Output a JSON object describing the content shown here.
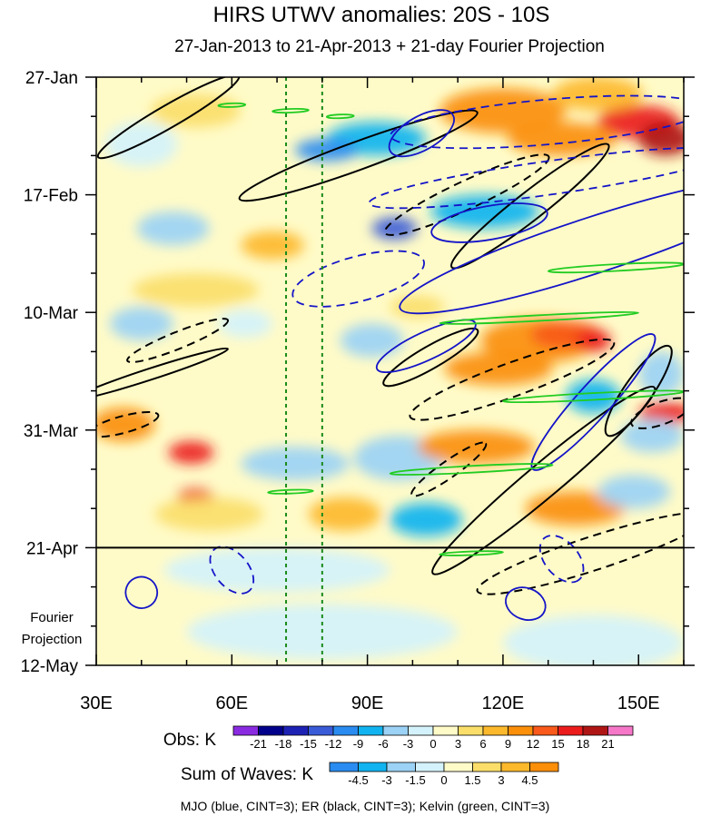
{
  "chart_data": {
    "type": "heatmap",
    "title": "HIRS UTWV anomalies: 20S - 10S",
    "subtitle": "27-Jan-2013 to 21-Apr-2013 + 21-day Fourier Projection",
    "x_axis": {
      "units": "longitude_deg_E",
      "range": [
        30,
        160
      ],
      "tick_values": [
        30,
        60,
        90,
        120,
        150
      ],
      "tick_labels": [
        "30E",
        "60E",
        "90E",
        "120E",
        "150E"
      ]
    },
    "y_axis": {
      "units": "day_index_from_27-Jan-2013",
      "range": [
        0,
        105
      ],
      "tick_values": [
        0,
        21,
        42,
        63,
        84,
        105
      ],
      "tick_labels": [
        "27-Jan",
        "17-Feb",
        "10-Mar",
        "31-Mar",
        "21-Apr",
        "12-May"
      ]
    },
    "projection_boundary_day": 84,
    "projection_label": [
      "Fourier",
      "Projection"
    ],
    "reference_lines_lon": [
      72,
      80
    ],
    "obs_colorbar": {
      "label": "Obs: K",
      "levels": [
        -21,
        -18,
        -15,
        -12,
        -9,
        -6,
        -3,
        0,
        3,
        6,
        9,
        12,
        15,
        18,
        21
      ],
      "colors": [
        "#8a2be2",
        "#00008b",
        "#1e22b4",
        "#3a5bd8",
        "#2a8cf0",
        "#11b4f0",
        "#9bd2f5",
        "#d4f2fb",
        "#fffbc8",
        "#fbde6a",
        "#fdb92c",
        "#fb8f0a",
        "#f9591a",
        "#ec1c1c",
        "#b01515",
        "#f677c8"
      ]
    },
    "waves_colorbar": {
      "label": "Sum of Waves: K",
      "levels": [
        -4.5,
        -3,
        -1.5,
        0,
        1.5,
        3,
        4.5
      ],
      "colors": [
        "#2a8cf0",
        "#11b4f0",
        "#9bd2f5",
        "#d4f2fb",
        "#fffbc8",
        "#fbde6a",
        "#fdb92c",
        "#fb8f0a"
      ]
    },
    "legend_note": "MJO (blue, CINT=3); ER (black, CINT=3); Kelvin (green, CINT=3)",
    "series_colors": {
      "MJO": "#1414c8",
      "ER": "#000000",
      "Kelvin": "#22cc22",
      "refline": "#1a8a1a"
    },
    "blobs": [
      {
        "lon": 120,
        "day": 6,
        "rx": 14,
        "ry": 4,
        "v": 9
      },
      {
        "lon": 150,
        "day": 8,
        "rx": 9,
        "ry": 3,
        "v": 15
      },
      {
        "lon": 156,
        "day": 11,
        "rx": 6,
        "ry": 3,
        "v": 18
      },
      {
        "lon": 141,
        "day": 3,
        "rx": 10,
        "ry": 3,
        "v": 6
      },
      {
        "lon": 133,
        "day": 11,
        "rx": 12,
        "ry": 3,
        "v": 9
      },
      {
        "lon": 92,
        "day": 11,
        "rx": 11,
        "ry": 3,
        "v": -9
      },
      {
        "lon": 81,
        "day": 13,
        "rx": 7,
        "ry": 2,
        "v": -12
      },
      {
        "lon": 116,
        "day": 24,
        "rx": 12,
        "ry": 3,
        "v": -9
      },
      {
        "lon": 96,
        "day": 27,
        "rx": 5,
        "ry": 2,
        "v": -15
      },
      {
        "lon": 69,
        "day": 30,
        "rx": 7,
        "ry": 2.5,
        "v": 6
      },
      {
        "lon": 47,
        "day": 27,
        "rx": 8,
        "ry": 3,
        "v": -6
      },
      {
        "lon": 40,
        "day": 12,
        "rx": 8,
        "ry": 4,
        "v": -3
      },
      {
        "lon": 52,
        "day": 6,
        "rx": 10,
        "ry": 3,
        "v": 3
      },
      {
        "lon": 52,
        "day": 38,
        "rx": 14,
        "ry": 3,
        "v": 3
      },
      {
        "lon": 40,
        "day": 44,
        "rx": 7,
        "ry": 3,
        "v": -6
      },
      {
        "lon": 63,
        "day": 44,
        "rx": 6,
        "ry": 2.5,
        "v": -3
      },
      {
        "lon": 91,
        "day": 47,
        "rx": 7,
        "ry": 3,
        "v": -6
      },
      {
        "lon": 101,
        "day": 41,
        "rx": 6,
        "ry": 2,
        "v": 3
      },
      {
        "lon": 128,
        "day": 47,
        "rx": 13,
        "ry": 4,
        "v": 9
      },
      {
        "lon": 134,
        "day": 46,
        "rx": 8,
        "ry": 2.5,
        "v": 12
      },
      {
        "lon": 140,
        "day": 47,
        "rx": 4,
        "ry": 2,
        "v": 15
      },
      {
        "lon": 119,
        "day": 52,
        "rx": 12,
        "ry": 3,
        "v": 9
      },
      {
        "lon": 140,
        "day": 57,
        "rx": 6,
        "ry": 3,
        "v": -9
      },
      {
        "lon": 156,
        "day": 60,
        "rx": 6,
        "ry": 2,
        "v": 15
      },
      {
        "lon": 155,
        "day": 53,
        "rx": 5,
        "ry": 4,
        "v": -6
      },
      {
        "lon": 36,
        "day": 62,
        "rx": 7,
        "ry": 3,
        "v": 9
      },
      {
        "lon": 51,
        "day": 67,
        "rx": 5,
        "ry": 2,
        "v": 15
      },
      {
        "lon": 74,
        "day": 69,
        "rx": 12,
        "ry": 3,
        "v": -6
      },
      {
        "lon": 97,
        "day": 68,
        "rx": 10,
        "ry": 4,
        "v": -6
      },
      {
        "lon": 114,
        "day": 66,
        "rx": 13,
        "ry": 3,
        "v": 9
      },
      {
        "lon": 153,
        "day": 64,
        "rx": 7,
        "ry": 3,
        "v": -6
      },
      {
        "lon": 52,
        "day": 75,
        "rx": 4,
        "ry": 1.5,
        "v": 15
      },
      {
        "lon": 55,
        "day": 78,
        "rx": 12,
        "ry": 3,
        "v": 3
      },
      {
        "lon": 85,
        "day": 78,
        "rx": 8,
        "ry": 3,
        "v": 6
      },
      {
        "lon": 103,
        "day": 79,
        "rx": 8,
        "ry": 3,
        "v": -9
      },
      {
        "lon": 136,
        "day": 77,
        "rx": 11,
        "ry": 3,
        "v": 9
      },
      {
        "lon": 149,
        "day": 74,
        "rx": 8,
        "ry": 3,
        "v": -6
      },
      {
        "lon": 70,
        "day": 88,
        "rx": 25,
        "ry": 4,
        "v": -1.5
      },
      {
        "lon": 120,
        "day": 90,
        "rx": 20,
        "ry": 4,
        "v": 1.5
      },
      {
        "lon": 80,
        "day": 99,
        "rx": 30,
        "ry": 5,
        "v": -1.5
      },
      {
        "lon": 140,
        "day": 101,
        "rx": 20,
        "ry": 5,
        "v": -1.5
      },
      {
        "lon": 150,
        "day": 88,
        "rx": 12,
        "ry": 3,
        "v": 1.5
      }
    ],
    "contours": [
      {
        "wave": "ER",
        "dashed": false,
        "cx": 46,
        "cy": 7,
        "rx": 18,
        "ry": 2,
        "angle": -30
      },
      {
        "wave": "ER",
        "dashed": false,
        "cx": 88,
        "cy": 14,
        "rx": 28,
        "ry": 2.5,
        "angle": -20
      },
      {
        "wave": "ER",
        "dashed": false,
        "cx": 126,
        "cy": 23,
        "rx": 22,
        "ry": 2.5,
        "angle": -38
      },
      {
        "wave": "ER",
        "dashed": false,
        "cx": 42,
        "cy": 53,
        "rx": 18,
        "ry": 1,
        "angle": -18
      },
      {
        "wave": "ER",
        "dashed": false,
        "cx": 104,
        "cy": 50,
        "rx": 12,
        "ry": 2,
        "angle": -30
      },
      {
        "wave": "ER",
        "dashed": false,
        "cx": 129,
        "cy": 72,
        "rx": 32,
        "ry": 3,
        "angle": -40
      },
      {
        "wave": "ER",
        "dashed": false,
        "cx": 150,
        "cy": 56,
        "rx": 12,
        "ry": 2.5,
        "angle": -55
      },
      {
        "wave": "ER",
        "dashed": true,
        "cx": 112,
        "cy": 21,
        "rx": 20,
        "ry": 2.5,
        "angle": -25
      },
      {
        "wave": "ER",
        "dashed": true,
        "cx": 48,
        "cy": 47,
        "rx": 12,
        "ry": 1.5,
        "angle": -22
      },
      {
        "wave": "ER",
        "dashed": true,
        "cx": 36,
        "cy": 62,
        "rx": 8,
        "ry": 1.5,
        "angle": -15
      },
      {
        "wave": "ER",
        "dashed": true,
        "cx": 122,
        "cy": 54,
        "rx": 24,
        "ry": 3,
        "angle": -20
      },
      {
        "wave": "ER",
        "dashed": true,
        "cx": 108,
        "cy": 70,
        "rx": 10,
        "ry": 1.5,
        "angle": -35
      },
      {
        "wave": "ER",
        "dashed": true,
        "cx": 140,
        "cy": 85,
        "rx": 27,
        "ry": 3,
        "angle": -18
      },
      {
        "wave": "ER",
        "dashed": true,
        "cx": 155,
        "cy": 60,
        "rx": 7,
        "ry": 2,
        "angle": -20
      },
      {
        "wave": "MJO",
        "dashed": false,
        "cx": 140,
        "cy": 30,
        "rx": 45,
        "ry": 5,
        "angle": -18
      },
      {
        "wave": "MJO",
        "dashed": false,
        "cx": 102,
        "cy": 10,
        "rx": 8,
        "ry": 3,
        "angle": -30
      },
      {
        "wave": "MJO",
        "dashed": false,
        "cx": 103,
        "cy": 48,
        "rx": 12,
        "ry": 2.5,
        "angle": -25
      },
      {
        "wave": "MJO",
        "dashed": false,
        "cx": 117,
        "cy": 26,
        "rx": 13,
        "ry": 3,
        "angle": -10
      },
      {
        "wave": "MJO",
        "dashed": false,
        "cx": 140,
        "cy": 58,
        "rx": 20,
        "ry": 3,
        "angle": -48
      },
      {
        "wave": "MJO",
        "dashed": false,
        "cx": 40,
        "cy": 92,
        "rx": 3.5,
        "ry": 2.8,
        "angle": 20
      },
      {
        "wave": "MJO",
        "dashed": false,
        "cx": 125,
        "cy": 94,
        "rx": 4.5,
        "ry": 2.8,
        "angle": 20
      },
      {
        "wave": "MJO",
        "dashed": true,
        "cx": 130,
        "cy": 8,
        "rx": 35,
        "ry": 4,
        "angle": -5
      },
      {
        "wave": "MJO",
        "dashed": true,
        "cx": 130,
        "cy": 18,
        "rx": 40,
        "ry": 3,
        "angle": -8
      },
      {
        "wave": "MJO",
        "dashed": true,
        "cx": 88,
        "cy": 36,
        "rx": 15,
        "ry": 4,
        "angle": -15
      },
      {
        "wave": "MJO",
        "dashed": true,
        "cx": 60,
        "cy": 88,
        "rx": 6,
        "ry": 3,
        "angle": 50
      },
      {
        "wave": "MJO",
        "dashed": true,
        "cx": 133,
        "cy": 86,
        "rx": 6,
        "ry": 3,
        "angle": 50
      },
      {
        "wave": "Kelvin",
        "dashed": false,
        "cx": 60,
        "cy": 5,
        "rx": 3,
        "ry": 0.3,
        "angle": -2
      },
      {
        "wave": "Kelvin",
        "dashed": false,
        "cx": 73,
        "cy": 6,
        "rx": 4,
        "ry": 0.3,
        "angle": -2
      },
      {
        "wave": "Kelvin",
        "dashed": false,
        "cx": 84,
        "cy": 7,
        "rx": 3,
        "ry": 0.3,
        "angle": -2
      },
      {
        "wave": "Kelvin",
        "dashed": false,
        "cx": 145,
        "cy": 34,
        "rx": 15,
        "ry": 0.6,
        "angle": -3
      },
      {
        "wave": "Kelvin",
        "dashed": false,
        "cx": 128,
        "cy": 43,
        "rx": 22,
        "ry": 0.5,
        "angle": -3
      },
      {
        "wave": "Kelvin",
        "dashed": false,
        "cx": 140,
        "cy": 57,
        "rx": 20,
        "ry": 0.6,
        "angle": -3
      },
      {
        "wave": "Kelvin",
        "dashed": false,
        "cx": 113,
        "cy": 70,
        "rx": 18,
        "ry": 0.6,
        "angle": -3
      },
      {
        "wave": "Kelvin",
        "dashed": false,
        "cx": 73,
        "cy": 74,
        "rx": 5,
        "ry": 0.3,
        "angle": -2
      },
      {
        "wave": "Kelvin",
        "dashed": false,
        "cx": 113,
        "cy": 85,
        "rx": 7,
        "ry": 0.3,
        "angle": -2
      }
    ]
  }
}
